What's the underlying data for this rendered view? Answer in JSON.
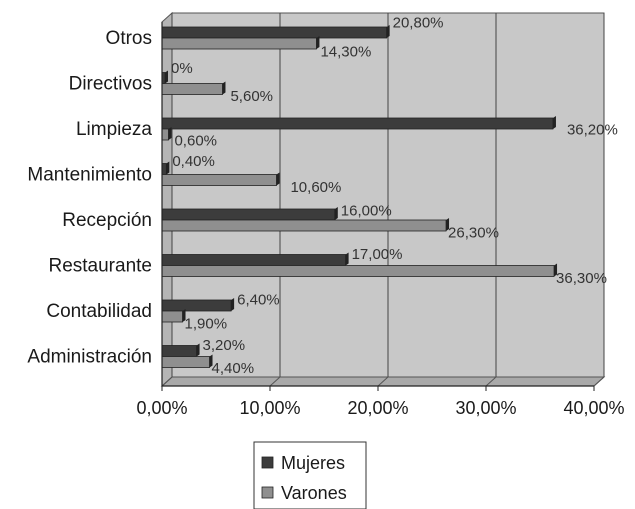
{
  "chart_data": {
    "type": "bar",
    "orientation": "horizontal",
    "categories": [
      "Otros",
      "Directivos",
      "Limpieza",
      "Mantenimiento",
      "Recepción",
      "Restaurante",
      "Contabilidad",
      "Administración"
    ],
    "series": [
      {
        "name": "Mujeres",
        "color": "#3c3c3c",
        "values": [
          20.8,
          0,
          36.2,
          0.4,
          16.0,
          17.0,
          6.4,
          3.2
        ],
        "labels": [
          "20,80%",
          "0%",
          "36,20%",
          "0,40%",
          "16,00%",
          "17,00%",
          "6,40%",
          "3,20%"
        ]
      },
      {
        "name": "Varones",
        "color": "#8f8f8f",
        "values": [
          14.3,
          5.6,
          0.6,
          10.6,
          26.3,
          36.3,
          1.9,
          4.4
        ],
        "labels": [
          "14,30%",
          "5,60%",
          "0,60%",
          "10,60%",
          "26,30%",
          "36,30%",
          "1,90%",
          "4,40%"
        ]
      }
    ],
    "xlim": [
      0,
      40
    ],
    "x_ticks": [
      0,
      10,
      20,
      30,
      40
    ],
    "x_tick_labels": [
      "0,00%",
      "10,00%",
      "20,00%",
      "30,00%",
      "40,00%"
    ],
    "grid": true,
    "legend_position": "bottom",
    "plot_background": "#c8c8c8",
    "style": "3d"
  }
}
